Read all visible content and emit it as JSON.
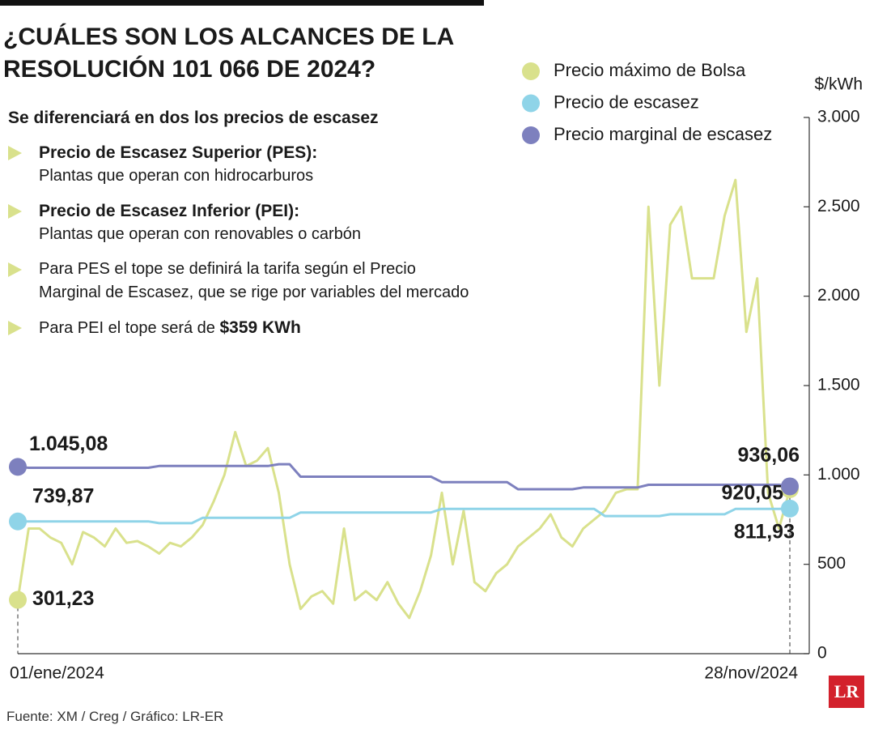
{
  "chart_data": {
    "type": "line",
    "title": "¿CUÁLES SON LOS ALCANCES DE LA RESOLUCIÓN 101 066 DE 2024?",
    "subtitle": "Se diferenciará en dos los precios de escasez",
    "notes": [
      {
        "heading": "Precio de Escasez Superior (PES):",
        "lines": [
          "Plantas que operan con hidrocarburos"
        ]
      },
      {
        "heading": "Precio de Escasez Inferior (PEI):",
        "lines": [
          "Plantas que operan con renovables  o carbón"
        ]
      },
      {
        "lines": [
          "Para PES el tope se definirá la tarifa según el Precio",
          "Marginal de Escasez, que se rige por variables del mercado"
        ]
      },
      {
        "lines": [
          "Para PEI el tope será de "
        ],
        "emphasis": "$359 KWh"
      }
    ],
    "y_label": "$/kWh",
    "source": "Fuente: XM / Creg / Gráfico: LR-ER",
    "logo": "LR",
    "ylim": [
      0,
      3000
    ],
    "yticks": [
      0,
      500,
      {
        "value": 1000,
        "label": "1.000"
      },
      {
        "value": 1500,
        "label": "1.500"
      },
      {
        "value": 2000,
        "label": "2.000"
      },
      {
        "value": 2500,
        "label": "2.500"
      },
      {
        "value": 3000,
        "label": "3.000"
      }
    ],
    "categories": [
      "01/ene/2024",
      null,
      null,
      null,
      null,
      null,
      null,
      null,
      null,
      null,
      null,
      null,
      null,
      null,
      null,
      null,
      null,
      null,
      null,
      null,
      null,
      null,
      null,
      null,
      null,
      null,
      null,
      null,
      null,
      null,
      null,
      null,
      null,
      null,
      null,
      null,
      null,
      null,
      null,
      null,
      null,
      null,
      null,
      null,
      null,
      null,
      null,
      null,
      null,
      null,
      null,
      null,
      null,
      null,
      null,
      null,
      null,
      null,
      null,
      null,
      null,
      null,
      null,
      null,
      null,
      null,
      null,
      null,
      null,
      null,
      null,
      "28/nov/2024"
    ],
    "series": [
      {
        "name": "Precio máximo de Bolsa",
        "color": "#d9e18c",
        "values": [
          301.23,
          700,
          700,
          650,
          620,
          500,
          680,
          650,
          600,
          700,
          620,
          630,
          600,
          560,
          620,
          600,
          650,
          720,
          850,
          1000,
          1240,
          1050,
          1080,
          1150,
          900,
          500,
          250,
          320,
          350,
          280,
          700,
          300,
          350,
          300,
          400,
          280,
          200,
          350,
          550,
          900,
          500,
          800,
          400,
          350,
          450,
          500,
          600,
          650,
          700,
          780,
          650,
          600,
          700,
          750,
          800,
          900,
          920,
          920,
          2500,
          1500,
          2400,
          2500,
          2100,
          2100,
          2100,
          2450,
          2650,
          1800,
          2100,
          900,
          700,
          920.05
        ],
        "value_labels": [
          "301,23",
          null,
          null,
          null,
          null,
          null,
          null,
          null,
          null,
          null,
          null,
          null,
          null,
          null,
          null,
          null,
          null,
          null,
          null,
          null,
          null,
          null,
          null,
          null,
          null,
          null,
          null,
          null,
          null,
          null,
          null,
          null,
          null,
          null,
          null,
          null,
          null,
          null,
          null,
          null,
          null,
          null,
          null,
          null,
          null,
          null,
          null,
          null,
          null,
          null,
          null,
          null,
          null,
          null,
          null,
          null,
          null,
          null,
          null,
          null,
          null,
          null,
          null,
          null,
          null,
          null,
          null,
          null,
          null,
          null,
          null,
          "920,05"
        ]
      },
      {
        "name": "Precio de escasez",
        "color": "#8fd4e8",
        "values": [
          739.87,
          740,
          740,
          740,
          740,
          740,
          740,
          740,
          740,
          740,
          740,
          740,
          740,
          730,
          730,
          730,
          730,
          760,
          760,
          760,
          760,
          760,
          760,
          760,
          760,
          760,
          790,
          790,
          790,
          790,
          790,
          790,
          790,
          790,
          790,
          790,
          790,
          790,
          790,
          810,
          810,
          810,
          810,
          810,
          810,
          810,
          810,
          810,
          810,
          810,
          810,
          810,
          810,
          810,
          770,
          770,
          770,
          770,
          770,
          770,
          780,
          780,
          780,
          780,
          780,
          780,
          810,
          810,
          810,
          810,
          810,
          811.93
        ],
        "value_labels": [
          "739,87",
          null,
          null,
          null,
          null,
          null,
          null,
          null,
          null,
          null,
          null,
          null,
          null,
          null,
          null,
          null,
          null,
          null,
          null,
          null,
          null,
          null,
          null,
          null,
          null,
          null,
          null,
          null,
          null,
          null,
          null,
          null,
          null,
          null,
          null,
          null,
          null,
          null,
          null,
          null,
          null,
          null,
          null,
          null,
          null,
          null,
          null,
          null,
          null,
          null,
          null,
          null,
          null,
          null,
          null,
          null,
          null,
          null,
          null,
          null,
          null,
          null,
          null,
          null,
          null,
          null,
          null,
          null,
          null,
          null,
          null,
          "811,93"
        ]
      },
      {
        "name": "Precio marginal de escasez",
        "color": "#7d80be",
        "values": [
          1045.08,
          1040,
          1040,
          1040,
          1040,
          1040,
          1040,
          1040,
          1040,
          1040,
          1040,
          1040,
          1040,
          1050,
          1050,
          1050,
          1050,
          1050,
          1050,
          1050,
          1050,
          1050,
          1050,
          1050,
          1060,
          1060,
          990,
          990,
          990,
          990,
          990,
          990,
          990,
          990,
          990,
          990,
          990,
          990,
          990,
          960,
          960,
          960,
          960,
          960,
          960,
          960,
          920,
          920,
          920,
          920,
          920,
          920,
          930,
          930,
          930,
          930,
          930,
          930,
          945,
          945,
          945,
          945,
          945,
          945,
          945,
          945,
          945,
          945,
          945,
          945,
          945,
          936.06
        ],
        "value_labels": [
          "1.045,08",
          null,
          null,
          null,
          null,
          null,
          null,
          null,
          null,
          null,
          null,
          null,
          null,
          null,
          null,
          null,
          null,
          null,
          null,
          null,
          null,
          null,
          null,
          null,
          null,
          null,
          null,
          null,
          null,
          null,
          null,
          null,
          null,
          null,
          null,
          null,
          null,
          null,
          null,
          null,
          null,
          null,
          null,
          null,
          null,
          null,
          null,
          null,
          null,
          null,
          null,
          null,
          null,
          null,
          null,
          null,
          null,
          null,
          null,
          null,
          null,
          null,
          null,
          null,
          null,
          null,
          null,
          null,
          null,
          null,
          null,
          "936,06"
        ]
      }
    ]
  }
}
